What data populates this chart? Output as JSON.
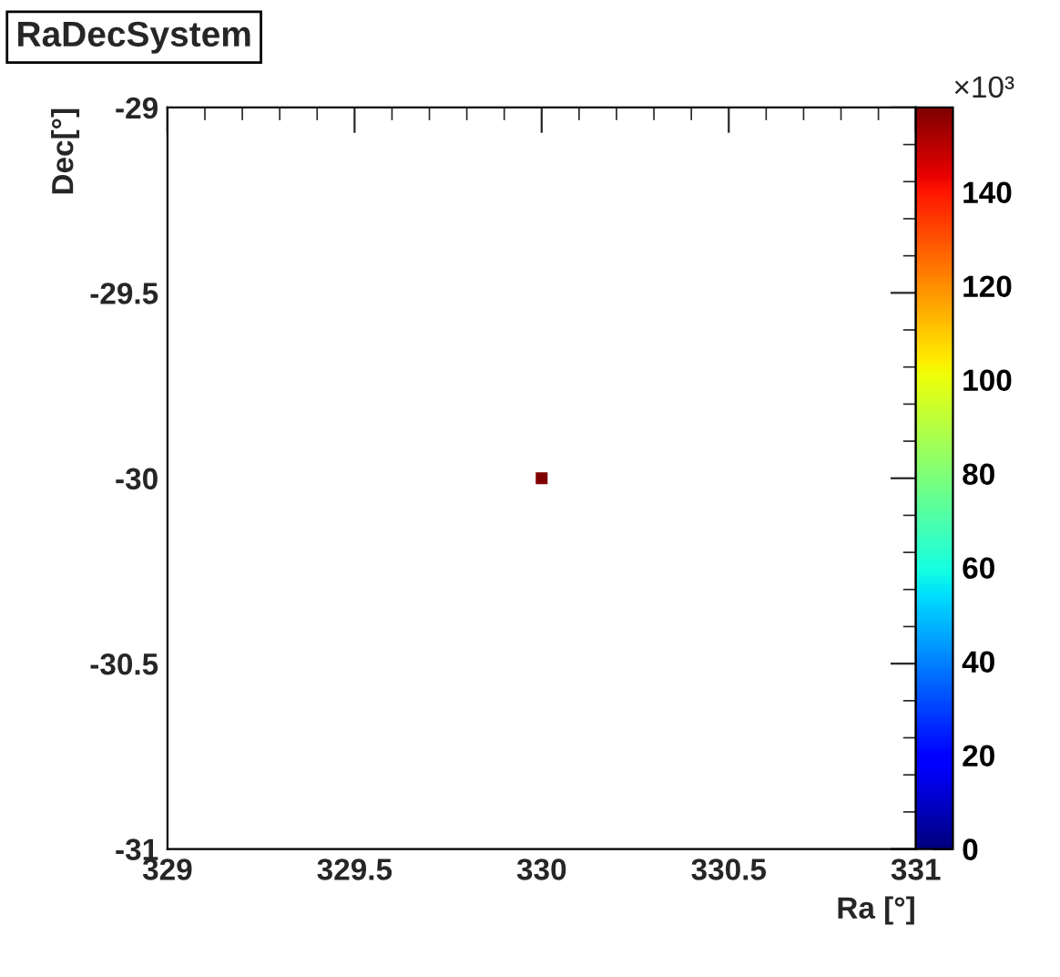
{
  "chart_data": {
    "type": "scatter",
    "title": "RaDecSystem",
    "xlabel": "Ra [°]",
    "ylabel": "Dec[°]",
    "x": [
      330
    ],
    "values": [
      -30
    ],
    "cvalues": [
      158
    ],
    "marker": "square",
    "xlim": [
      329,
      331
    ],
    "xticks": [
      329,
      329.5,
      330,
      330.5,
      331
    ],
    "ylim": [
      -31,
      -29
    ],
    "yticks": [
      -31,
      -30.5,
      -30,
      -29.5,
      -29
    ],
    "clim": [
      0,
      158
    ],
    "cticks": [
      0,
      20,
      40,
      60,
      80,
      100,
      120,
      140
    ],
    "annotations": [
      "×10³"
    ],
    "grid": false,
    "legend": false
  }
}
